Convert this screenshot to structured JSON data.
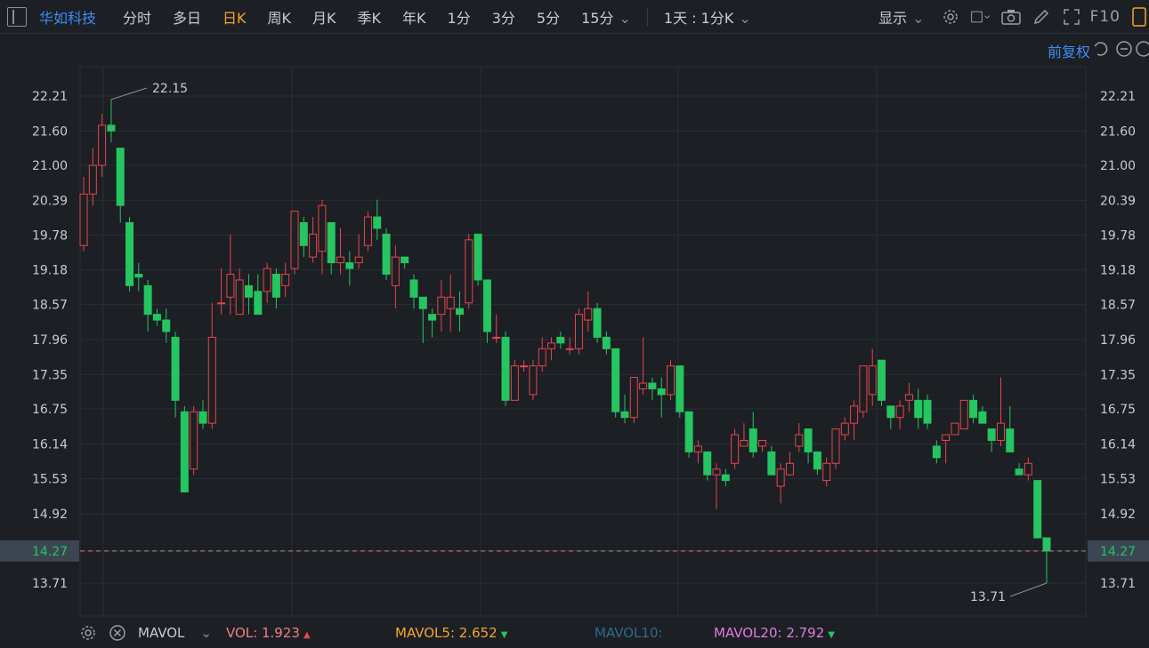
{
  "toolbar": {
    "stock_name": "华如科技",
    "tabs": [
      {
        "label": "分时",
        "active": false
      },
      {
        "label": "多日",
        "active": false
      },
      {
        "label": "日K",
        "active": true
      },
      {
        "label": "周K",
        "active": false
      },
      {
        "label": "月K",
        "active": false
      },
      {
        "label": "季K",
        "active": false
      },
      {
        "label": "年K",
        "active": false
      },
      {
        "label": "1分",
        "active": false
      },
      {
        "label": "3分",
        "active": false
      },
      {
        "label": "5分",
        "active": false
      }
    ],
    "interval_select": "15分",
    "multi_select": "1天 : 1分K",
    "display_label": "显示",
    "f10_label": "F10"
  },
  "adjust_label": "前复权",
  "colors": {
    "up": "#e8454c",
    "down": "#25c561",
    "background": "#1c1f24",
    "grid": "#2a2e35",
    "accent": "#3d8df5",
    "highlight_tab": "#f5a623",
    "vol": "#f08080",
    "mavol5": "#f5a623",
    "mavol10": "#2e6b8a",
    "mavol20": "#e07be0"
  },
  "chart_data": {
    "type": "candlestick",
    "y_ticks": [
      "22.21",
      "21.60",
      "21.00",
      "20.39",
      "19.78",
      "19.18",
      "18.57",
      "17.96",
      "17.35",
      "16.75",
      "16.14",
      "15.53",
      "14.92",
      "14.27",
      "13.71"
    ],
    "ylim": [
      13.5,
      22.45
    ],
    "current_price": "14.27",
    "high_label": "22.15",
    "low_label": "13.71",
    "candles": [
      [
        19.6,
        20.5,
        19.5,
        20.8
      ],
      [
        20.5,
        21.0,
        20.3,
        21.3
      ],
      [
        21.0,
        21.7,
        20.8,
        21.9
      ],
      [
        21.7,
        21.6,
        21.4,
        22.15
      ],
      [
        21.3,
        20.3,
        20.0,
        21.3
      ],
      [
        20.0,
        18.9,
        18.8,
        20.1
      ],
      [
        19.1,
        19.05,
        18.8,
        19.3
      ],
      [
        18.9,
        18.4,
        18.1,
        19.0
      ],
      [
        18.4,
        18.3,
        18.2,
        18.5
      ],
      [
        18.3,
        18.1,
        17.9,
        18.5
      ],
      [
        18.0,
        16.9,
        16.6,
        18.1
      ],
      [
        16.7,
        15.3,
        15.3,
        16.8
      ],
      [
        15.7,
        16.7,
        15.6,
        16.8
      ],
      [
        16.7,
        16.5,
        16.4,
        16.9
      ],
      [
        16.5,
        18.0,
        16.4,
        18.6
      ],
      [
        18.6,
        18.6,
        18.4,
        19.2
      ],
      [
        18.7,
        19.1,
        18.4,
        19.8
      ],
      [
        18.4,
        19.0,
        18.4,
        19.2
      ],
      [
        18.9,
        18.7,
        18.4,
        19.1
      ],
      [
        18.8,
        18.4,
        18.4,
        19.1
      ],
      [
        18.8,
        19.2,
        18.6,
        19.3
      ],
      [
        19.1,
        18.7,
        18.5,
        19.2
      ],
      [
        18.9,
        19.1,
        18.7,
        19.3
      ],
      [
        19.2,
        20.2,
        19.1,
        20.2
      ],
      [
        20.0,
        19.6,
        19.4,
        20.1
      ],
      [
        19.4,
        19.8,
        19.3,
        20.1
      ],
      [
        19.5,
        20.3,
        19.1,
        20.4
      ],
      [
        20.0,
        19.3,
        19.1,
        20.0
      ],
      [
        19.3,
        19.4,
        19.1,
        19.9
      ],
      [
        19.3,
        19.2,
        18.9,
        19.5
      ],
      [
        19.3,
        19.4,
        19.2,
        19.8
      ],
      [
        19.6,
        20.1,
        19.5,
        20.2
      ],
      [
        20.1,
        19.9,
        19.7,
        20.4
      ],
      [
        19.8,
        19.1,
        19.0,
        19.9
      ],
      [
        18.9,
        19.4,
        18.5,
        19.6
      ],
      [
        19.4,
        19.3,
        19.2,
        19.4
      ],
      [
        19.0,
        18.7,
        18.5,
        19.1
      ],
      [
        18.7,
        18.5,
        17.9,
        18.7
      ],
      [
        18.4,
        18.3,
        18.0,
        18.5
      ],
      [
        18.4,
        18.7,
        18.1,
        19.0
      ],
      [
        18.5,
        18.7,
        18.1,
        19.1
      ],
      [
        18.5,
        18.4,
        18.1,
        18.8
      ],
      [
        18.6,
        19.7,
        18.5,
        19.8
      ],
      [
        19.8,
        19.0,
        18.9,
        19.8
      ],
      [
        19.0,
        18.1,
        17.9,
        19.0
      ],
      [
        18.0,
        18.0,
        17.9,
        18.4
      ],
      [
        18.0,
        16.9,
        16.8,
        18.1
      ],
      [
        16.9,
        17.5,
        16.9,
        17.6
      ],
      [
        17.5,
        17.5,
        17.4,
        17.6
      ],
      [
        17.0,
        17.5,
        16.9,
        17.6
      ],
      [
        17.5,
        17.8,
        17.4,
        18.0
      ],
      [
        17.8,
        17.9,
        17.6,
        18.0
      ],
      [
        18.0,
        17.9,
        17.8,
        18.1
      ],
      [
        17.8,
        17.8,
        17.7,
        18.0
      ],
      [
        17.8,
        18.4,
        17.7,
        18.5
      ],
      [
        18.3,
        18.5,
        18.1,
        18.8
      ],
      [
        18.5,
        18.0,
        17.9,
        18.6
      ],
      [
        18.0,
        17.8,
        17.7,
        18.1
      ],
      [
        17.8,
        16.7,
        16.6,
        17.8
      ],
      [
        16.7,
        16.6,
        16.5,
        17.0
      ],
      [
        16.6,
        17.3,
        16.5,
        17.3
      ],
      [
        17.1,
        17.2,
        17.0,
        18.0
      ],
      [
        17.2,
        17.1,
        16.9,
        17.3
      ],
      [
        17.1,
        17.0,
        16.6,
        17.3
      ],
      [
        17.0,
        17.5,
        16.9,
        17.6
      ],
      [
        17.5,
        16.7,
        16.6,
        17.5
      ],
      [
        16.7,
        16.0,
        15.9,
        16.7
      ],
      [
        16.0,
        16.1,
        15.8,
        16.2
      ],
      [
        16.0,
        15.6,
        15.5,
        16.0
      ],
      [
        15.6,
        15.7,
        15.0,
        15.8
      ],
      [
        15.6,
        15.5,
        15.4,
        15.7
      ],
      [
        15.8,
        16.3,
        15.7,
        16.4
      ],
      [
        16.1,
        16.2,
        16.1,
        16.5
      ],
      [
        16.4,
        16.0,
        15.9,
        16.7
      ],
      [
        16.1,
        16.2,
        16.0,
        16.2
      ],
      [
        16.0,
        15.6,
        15.6,
        16.1
      ],
      [
        15.4,
        15.7,
        15.1,
        15.8
      ],
      [
        15.6,
        15.8,
        15.6,
        16.0
      ],
      [
        16.1,
        16.3,
        16.0,
        16.5
      ],
      [
        16.4,
        16.0,
        15.8,
        16.4
      ],
      [
        16.0,
        15.7,
        15.6,
        16.0
      ],
      [
        15.5,
        15.8,
        15.4,
        15.9
      ],
      [
        15.8,
        16.4,
        15.7,
        16.4
      ],
      [
        16.3,
        16.5,
        16.2,
        16.6
      ],
      [
        16.5,
        16.8,
        16.2,
        16.9
      ],
      [
        16.7,
        17.5,
        16.6,
        17.5
      ],
      [
        17.0,
        17.5,
        16.8,
        17.8
      ],
      [
        17.6,
        16.9,
        16.8,
        17.6
      ],
      [
        16.8,
        16.6,
        16.4,
        16.8
      ],
      [
        16.6,
        16.8,
        16.4,
        16.9
      ],
      [
        16.9,
        17.0,
        16.7,
        17.2
      ],
      [
        16.9,
        16.6,
        16.4,
        17.1
      ],
      [
        16.9,
        16.5,
        16.4,
        17.0
      ],
      [
        16.1,
        15.9,
        15.8,
        16.2
      ],
      [
        16.2,
        16.3,
        15.8,
        16.3
      ],
      [
        16.3,
        16.5,
        16.3,
        16.5
      ],
      [
        16.4,
        16.9,
        16.4,
        16.9
      ],
      [
        16.9,
        16.6,
        16.5,
        17.0
      ],
      [
        16.7,
        16.5,
        16.5,
        16.8
      ],
      [
        16.4,
        16.2,
        16.0,
        16.4
      ],
      [
        16.2,
        16.5,
        16.1,
        17.3
      ],
      [
        16.4,
        16.0,
        16.0,
        16.8
      ],
      [
        15.7,
        15.6,
        15.6,
        15.8
      ],
      [
        15.6,
        15.8,
        15.5,
        15.9
      ],
      [
        15.5,
        14.5,
        14.5,
        15.5
      ],
      [
        14.5,
        14.27,
        13.71,
        14.5
      ]
    ]
  },
  "legend": {
    "indicator": "MAVOL",
    "vol": "VOL: 1.923",
    "mavol5": "MAVOL5: 2.652",
    "mavol10": "MAVOL10:",
    "mavol20": "MAVOL20: 2.792"
  }
}
